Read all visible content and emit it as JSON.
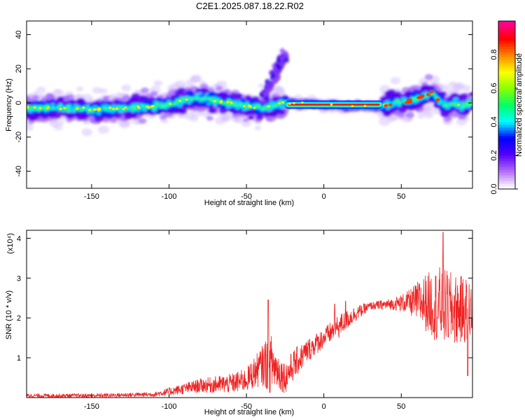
{
  "title": "C2E1.2025.087.18.22.R02",
  "chart_data": [
    {
      "type": "heatmap",
      "xlabel": "Height of straight line (km)",
      "ylabel": "Frequency (Hz)",
      "xlim": [
        -192,
        96
      ],
      "ylim": [
        -50,
        48
      ],
      "xticks": [
        -150,
        -100,
        -50,
        0,
        50
      ],
      "yticks": [
        -40,
        -20,
        0,
        20,
        40
      ],
      "colorbar": {
        "label": "Normalized spectral amplitude",
        "range": [
          0,
          1
        ],
        "ticks": [
          0.0,
          0.2,
          0.4,
          0.6,
          0.8
        ],
        "colors": [
          "#ffffff",
          "#b46bff",
          "#5500ff",
          "#0000ff",
          "#00ffff",
          "#00ff66",
          "#88ff00",
          "#ffff00",
          "#ff8800",
          "#ff0000",
          "#ff0099"
        ]
      },
      "ridge": [
        {
          "x": -190,
          "y": -3
        },
        {
          "x": -170,
          "y": -3
        },
        {
          "x": -150,
          "y": -4
        },
        {
          "x": -130,
          "y": -3
        },
        {
          "x": -110,
          "y": -2
        },
        {
          "x": -100,
          "y": -1
        },
        {
          "x": -90,
          "y": 2
        },
        {
          "x": -80,
          "y": 3
        },
        {
          "x": -70,
          "y": 1
        },
        {
          "x": -60,
          "y": 0
        },
        {
          "x": -50,
          "y": -2
        },
        {
          "x": -40,
          "y": -3
        },
        {
          "x": -32,
          "y": -2
        },
        {
          "x": -28,
          "y": 0
        },
        {
          "x": -24,
          "y": 0
        },
        {
          "x": 0,
          "y": -1
        },
        {
          "x": 20,
          "y": -2
        },
        {
          "x": 38,
          "y": -2
        },
        {
          "x": 45,
          "y": 0
        },
        {
          "x": 55,
          "y": 1
        },
        {
          "x": 65,
          "y": 4
        },
        {
          "x": 70,
          "y": 6
        },
        {
          "x": 75,
          "y": 1
        },
        {
          "x": 80,
          "y": -2
        },
        {
          "x": 85,
          "y": 0
        },
        {
          "x": 90,
          "y": -2
        },
        {
          "x": 96,
          "y": 0
        }
      ],
      "plume": [
        {
          "x": -38,
          "y": 4
        },
        {
          "x": -35,
          "y": 10
        },
        {
          "x": -32,
          "y": 16
        },
        {
          "x": -30,
          "y": 20
        },
        {
          "x": -28,
          "y": 24
        },
        {
          "x": -26,
          "y": 27
        }
      ],
      "strong_segment": {
        "x": [
          -25,
          38
        ],
        "y": 0
      }
    },
    {
      "type": "line",
      "xlabel": "Height of straight line (km)",
      "ylabel": "SNR (10 * v/v)",
      "multiplier": "(x10⁴)",
      "xlim": [
        -192,
        96
      ],
      "ylim": [
        0,
        4.2
      ],
      "xticks": [
        -150,
        -100,
        -50,
        0,
        50
      ],
      "yticks": [
        1,
        2,
        3,
        4
      ],
      "color": "#ee2222",
      "envelope": [
        {
          "x": -192,
          "mean": 0.05,
          "amp": 0.05
        },
        {
          "x": -150,
          "mean": 0.05,
          "amp": 0.05
        },
        {
          "x": -110,
          "mean": 0.08,
          "amp": 0.06
        },
        {
          "x": -100,
          "mean": 0.15,
          "amp": 0.1
        },
        {
          "x": -80,
          "mean": 0.3,
          "amp": 0.18
        },
        {
          "x": -60,
          "mean": 0.35,
          "amp": 0.25
        },
        {
          "x": -50,
          "mean": 0.45,
          "amp": 0.3
        },
        {
          "x": -40,
          "mean": 0.8,
          "amp": 0.5
        },
        {
          "x": -35,
          "mean": 0.9,
          "amp": 0.8
        },
        {
          "x": -30,
          "mean": 0.7,
          "amp": 0.5
        },
        {
          "x": -25,
          "mean": 0.5,
          "amp": 0.4
        },
        {
          "x": -20,
          "mean": 0.8,
          "amp": 0.4
        },
        {
          "x": -10,
          "mean": 1.2,
          "amp": 0.3
        },
        {
          "x": 0,
          "mean": 1.5,
          "amp": 0.25
        },
        {
          "x": 10,
          "mean": 1.8,
          "amp": 0.3
        },
        {
          "x": 20,
          "mean": 2.1,
          "amp": 0.2
        },
        {
          "x": 30,
          "mean": 2.3,
          "amp": 0.1
        },
        {
          "x": 45,
          "mean": 2.35,
          "amp": 0.15
        },
        {
          "x": 55,
          "mean": 2.4,
          "amp": 0.3
        },
        {
          "x": 65,
          "mean": 2.4,
          "amp": 0.7
        },
        {
          "x": 75,
          "mean": 2.3,
          "amp": 1.0
        },
        {
          "x": 85,
          "mean": 2.2,
          "amp": 0.9
        },
        {
          "x": 96,
          "mean": 2.2,
          "amp": 0.8
        }
      ],
      "spikes": [
        {
          "x": -36,
          "y": 2.45
        },
        {
          "x": 7,
          "y": 2.35
        },
        {
          "x": 14,
          "y": 2.42
        },
        {
          "x": 77,
          "y": 4.15
        },
        {
          "x": 93,
          "y": 0.55
        }
      ]
    }
  ]
}
